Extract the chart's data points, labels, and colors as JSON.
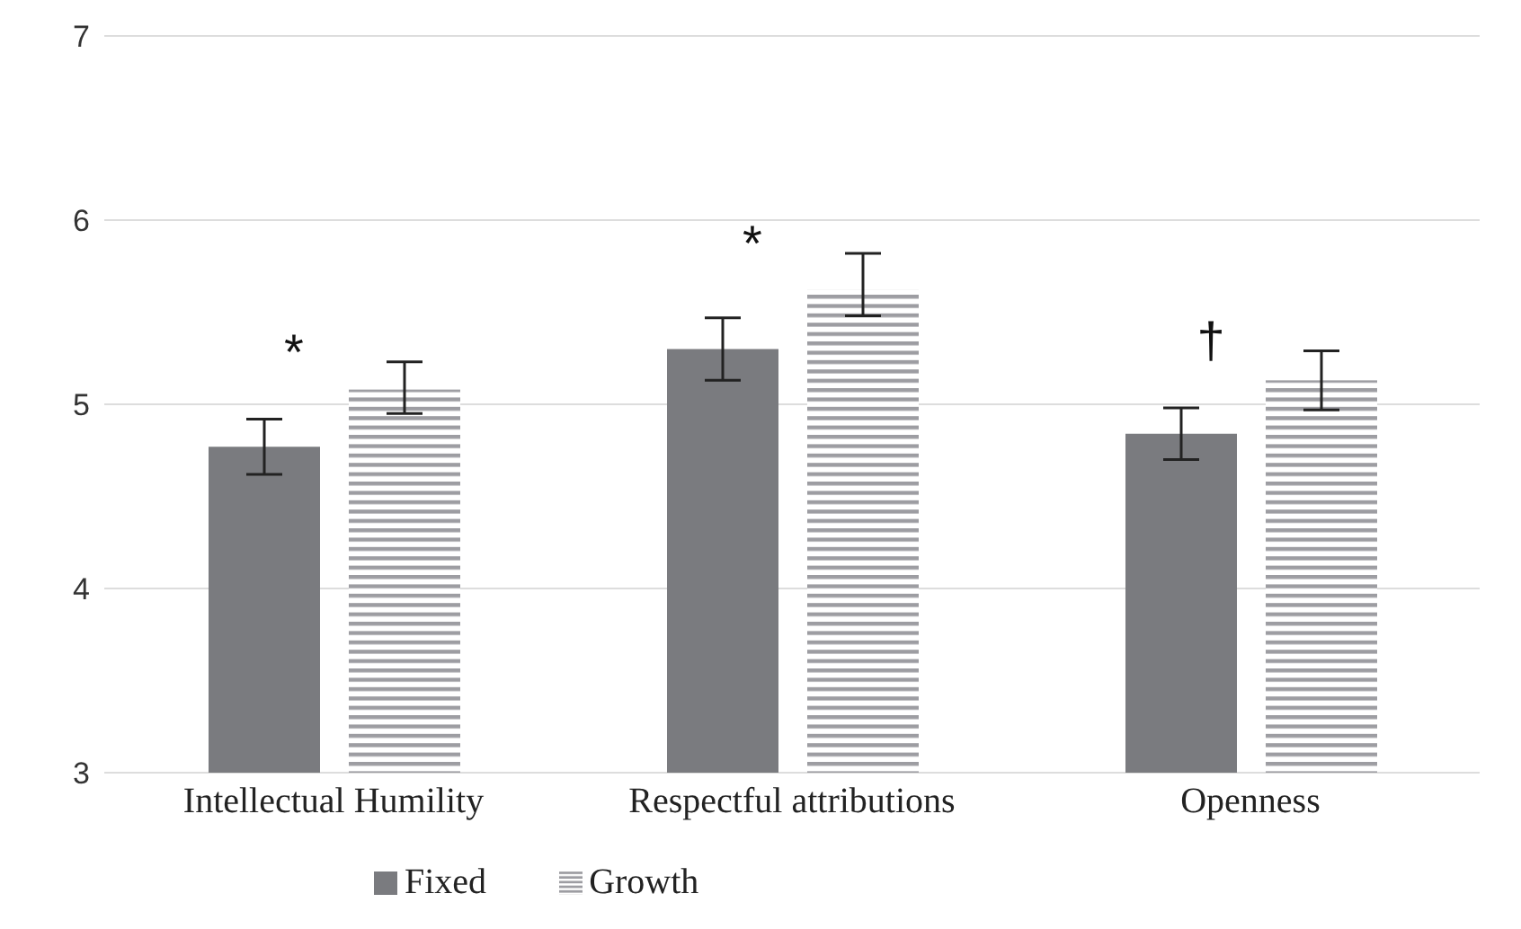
{
  "chart_data": {
    "type": "bar",
    "categories": [
      "Intellectual Humility",
      "Respectful attributions",
      "Openness"
    ],
    "series": [
      {
        "name": "Fixed",
        "color": "#7a7b7f",
        "values": [
          4.77,
          5.3,
          4.84
        ],
        "errors": [
          [
            4.62,
            4.92
          ],
          [
            5.13,
            5.47
          ],
          [
            4.7,
            4.98
          ]
        ]
      },
      {
        "name": "Growth",
        "color": "#9d9da2",
        "values": [
          5.08,
          5.62,
          5.13
        ],
        "errors": [
          [
            4.95,
            5.23
          ],
          [
            5.48,
            5.82
          ],
          [
            4.97,
            5.29
          ]
        ]
      }
    ],
    "ylim": [
      3,
      7
    ],
    "yticks": [
      3,
      4,
      5,
      6,
      7
    ],
    "grid": "y",
    "legend": "bottom left",
    "annotations": [
      "*",
      "*",
      "†"
    ]
  }
}
